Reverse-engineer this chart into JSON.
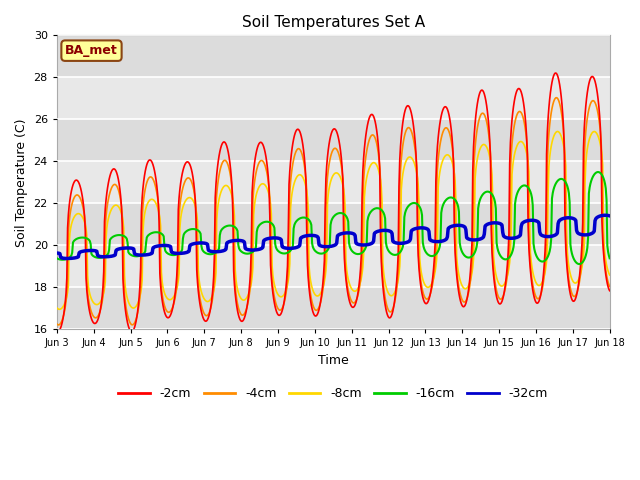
{
  "title": "Soil Temperatures Set A",
  "xlabel": "Time",
  "ylabel": "Soil Temperature (C)",
  "ylim": [
    16,
    30
  ],
  "xlim_days": [
    3,
    18
  ],
  "annotation_text": "BA_met",
  "annotation_box_color": "#FFFF99",
  "annotation_border_color": "#8B4513",
  "annotation_text_color": "#8B0000",
  "background_color": "#FFFFFF",
  "plot_bg_color": "#DCDCDC",
  "grid_color": "#FFFFFF",
  "band_colors": [
    "#D3D3D3",
    "#C8C8C8"
  ],
  "line_colors": {
    "-2cm": "#FF0000",
    "-4cm": "#FF8C00",
    "-8cm": "#FFD700",
    "-16cm": "#00CC00",
    "-32cm": "#0000CC"
  },
  "line_widths": {
    "-2cm": 1.2,
    "-4cm": 1.2,
    "-8cm": 1.2,
    "-16cm": 1.5,
    "-32cm": 2.5
  },
  "yticks": [
    16,
    18,
    20,
    22,
    24,
    26,
    28,
    30
  ],
  "xtick_labels": [
    "Jun 3",
    "Jun 4",
    "Jun 5",
    "Jun 6",
    "Jun 7",
    "Jun 8",
    "Jun 9",
    "Jun 10",
    "Jun 11",
    "Jun 12",
    "Jun 13",
    "Jun 14",
    "Jun 15",
    "Jun 16",
    "Jun 17",
    "Jun 18"
  ],
  "xtick_positions": [
    3,
    4,
    5,
    6,
    7,
    8,
    9,
    10,
    11,
    12,
    13,
    14,
    15,
    16,
    17,
    18
  ]
}
